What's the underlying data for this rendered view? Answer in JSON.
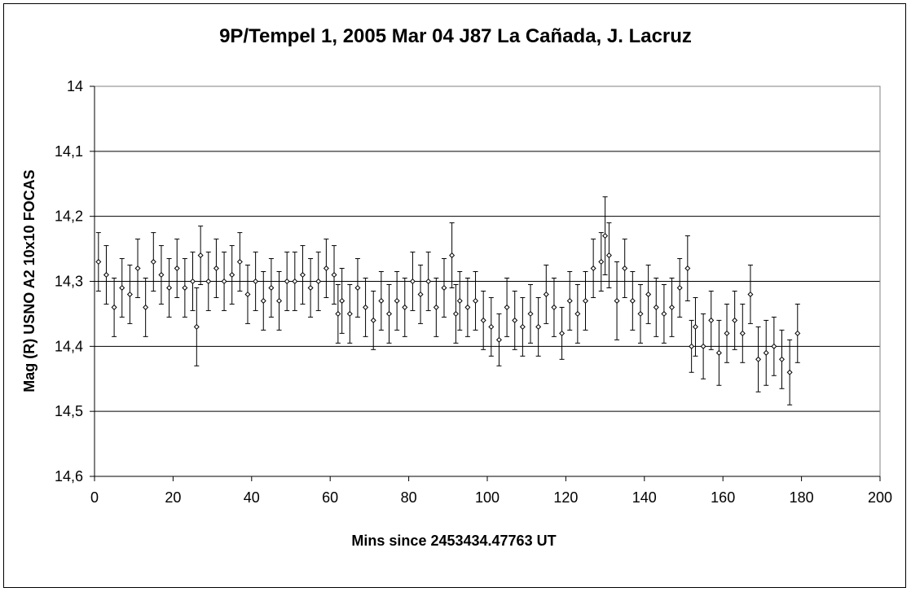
{
  "chart_data": {
    "type": "scatter",
    "title": "9P/Tempel 1, 2005 Mar 04   J87 La Cañada, J. Lacruz",
    "xlabel": "Mins since 2453434.47763 UT",
    "ylabel": "Mag (R) USNO A2 10x10 FOCAS",
    "xlim": [
      0,
      200
    ],
    "ylim": [
      14.0,
      14.6
    ],
    "y_inverted": true,
    "grid": "horizontal",
    "legend": "none",
    "x_ticks": [
      0,
      20,
      40,
      60,
      80,
      100,
      120,
      140,
      160,
      180,
      200
    ],
    "y_ticks": [
      14.0,
      14.1,
      14.2,
      14.3,
      14.4,
      14.5,
      14.6
    ],
    "x_tick_labels": [
      "0",
      "20",
      "40",
      "60",
      "80",
      "100",
      "120",
      "140",
      "160",
      "180",
      "200"
    ],
    "y_tick_labels": [
      "14",
      "14,1",
      "14,2",
      "14,3",
      "14,4",
      "14,5",
      "14,6"
    ],
    "marker_color": "#000000",
    "series": [
      {
        "x": [
          1,
          3,
          5,
          7,
          9,
          11,
          13,
          15,
          17,
          19,
          21,
          23,
          25,
          26,
          27,
          29,
          31,
          33,
          35,
          37,
          39,
          41,
          43,
          45,
          47,
          49,
          51,
          53,
          55,
          57,
          59,
          61,
          62,
          63,
          65,
          67,
          69,
          71,
          73,
          75,
          77,
          79,
          81,
          83,
          85,
          87,
          89,
          91,
          92,
          93,
          95,
          97,
          99,
          101,
          103,
          105,
          107,
          109,
          111,
          113,
          115,
          117,
          119,
          121,
          123,
          125,
          127,
          129,
          130,
          131,
          133,
          135,
          137,
          139,
          141,
          143,
          145,
          147,
          149,
          151,
          152,
          153,
          155,
          157,
          159,
          161,
          163,
          165,
          167,
          169,
          171,
          173,
          175,
          177,
          179
        ],
        "y": [
          14.27,
          14.29,
          14.34,
          14.31,
          14.32,
          14.28,
          14.34,
          14.27,
          14.29,
          14.31,
          14.28,
          14.31,
          14.3,
          14.37,
          14.26,
          14.3,
          14.28,
          14.3,
          14.29,
          14.27,
          14.32,
          14.3,
          14.33,
          14.31,
          14.33,
          14.3,
          14.3,
          14.29,
          14.31,
          14.3,
          14.28,
          14.29,
          14.35,
          14.33,
          14.35,
          14.31,
          14.34,
          14.36,
          14.33,
          14.35,
          14.33,
          14.34,
          14.3,
          14.32,
          14.3,
          14.34,
          14.31,
          14.26,
          14.35,
          14.33,
          14.34,
          14.33,
          14.36,
          14.37,
          14.39,
          14.34,
          14.36,
          14.37,
          14.35,
          14.37,
          14.32,
          14.34,
          14.38,
          14.33,
          14.35,
          14.33,
          14.28,
          14.27,
          14.23,
          14.26,
          14.33,
          14.28,
          14.33,
          14.35,
          14.32,
          14.34,
          14.35,
          14.34,
          14.31,
          14.28,
          14.4,
          14.37,
          14.4,
          14.36,
          14.41,
          14.38,
          14.36,
          14.38,
          14.32,
          14.42,
          14.41,
          14.4,
          14.42,
          14.44,
          14.38
        ],
        "err": [
          0.045,
          0.045,
          0.045,
          0.045,
          0.045,
          0.045,
          0.045,
          0.045,
          0.045,
          0.045,
          0.045,
          0.045,
          0.045,
          0.06,
          0.045,
          0.045,
          0.045,
          0.045,
          0.045,
          0.045,
          0.045,
          0.045,
          0.045,
          0.045,
          0.045,
          0.045,
          0.045,
          0.045,
          0.045,
          0.045,
          0.045,
          0.045,
          0.045,
          0.05,
          0.045,
          0.045,
          0.045,
          0.045,
          0.045,
          0.045,
          0.045,
          0.045,
          0.045,
          0.045,
          0.045,
          0.045,
          0.045,
          0.05,
          0.045,
          0.045,
          0.045,
          0.045,
          0.045,
          0.045,
          0.04,
          0.045,
          0.045,
          0.045,
          0.045,
          0.045,
          0.045,
          0.045,
          0.04,
          0.045,
          0.045,
          0.045,
          0.045,
          0.045,
          0.06,
          0.05,
          0.06,
          0.045,
          0.045,
          0.045,
          0.045,
          0.045,
          0.045,
          0.045,
          0.045,
          0.05,
          0.04,
          0.045,
          0.05,
          0.045,
          0.05,
          0.045,
          0.045,
          0.045,
          0.045,
          0.05,
          0.05,
          0.045,
          0.045,
          0.05,
          0.045
        ]
      }
    ]
  }
}
